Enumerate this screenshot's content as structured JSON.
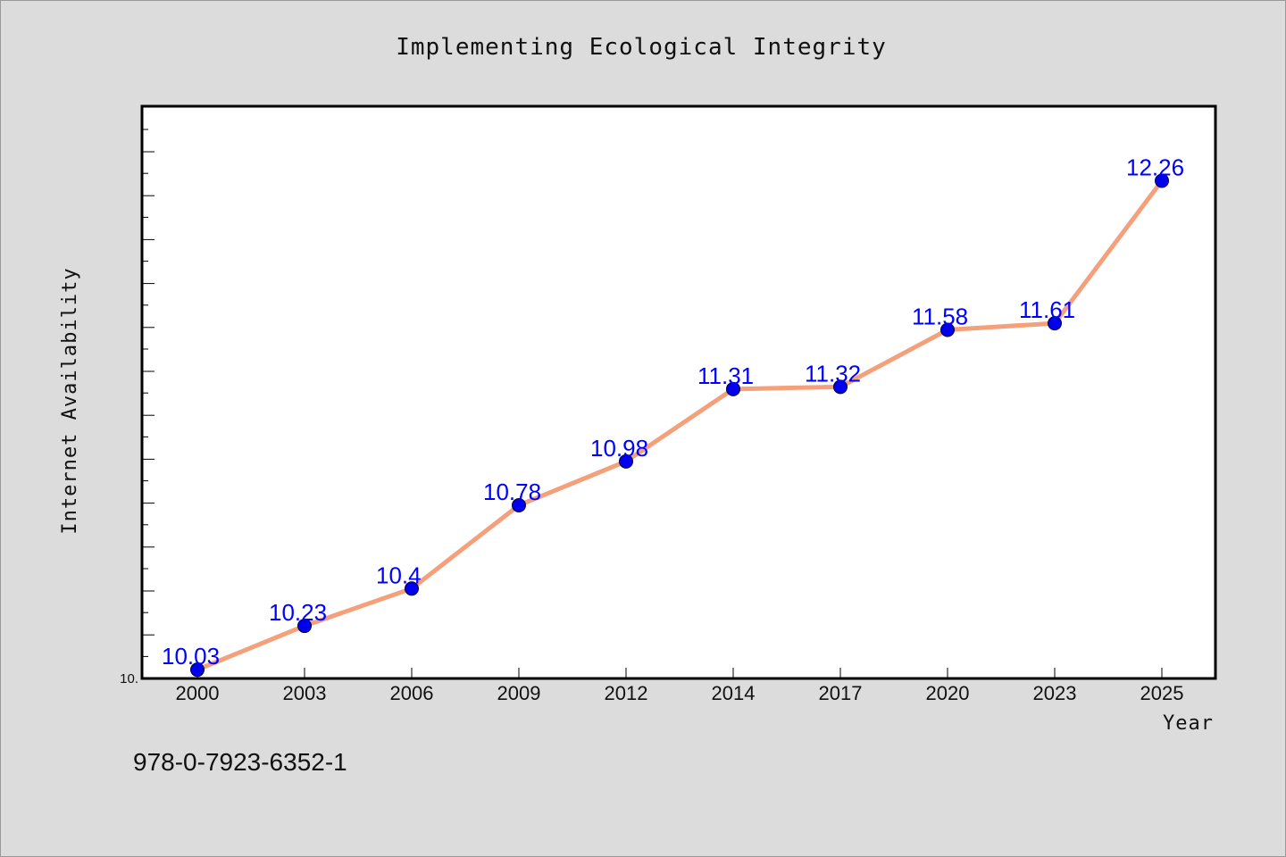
{
  "chart_data": {
    "type": "line",
    "title": "Implementing Ecological Integrity",
    "xlabel": "Year",
    "ylabel": "Internet Availability",
    "categories": [
      "2000",
      "2003",
      "2006",
      "2009",
      "2012",
      "2014",
      "2017",
      "2020",
      "2023",
      "2025"
    ],
    "series": [
      {
        "values": [
          10.03,
          10.23,
          10.4,
          10.78,
          10.98,
          11.31,
          11.32,
          11.58,
          11.61,
          12.26
        ],
        "labels": [
          "10.03",
          "10.23",
          "10.4",
          "10.78",
          "10.98",
          "11.31",
          "11.32",
          "11.58",
          "11.61",
          "12.26"
        ],
        "line_color": "#f4a07a",
        "marker_color": "#0000ee"
      }
    ],
    "y_tick_labels": [
      "10."
    ],
    "ylim": [
      9.99,
      12.6
    ],
    "grid": false,
    "legend": "none"
  },
  "footer": {
    "code": "978-0-7923-6352-1"
  },
  "colors": {
    "background": "#dcdcdc",
    "plot_background": "#ffffff",
    "data_label": "#0000ff"
  }
}
